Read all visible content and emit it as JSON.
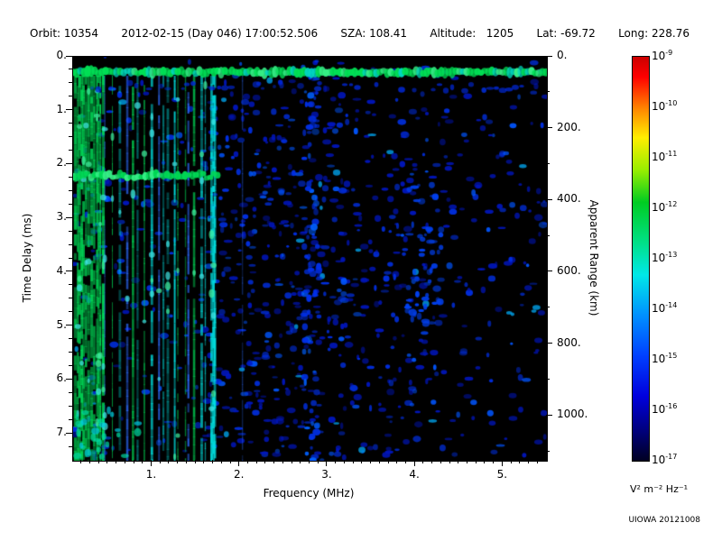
{
  "header": {
    "items": [
      "Orbit: 10354",
      "2012-02-15 (Day 046) 17:00:52.506",
      "SZA: 108.41",
      "Altitude:   1205",
      "Lat: -69.72",
      "Long: 228.76"
    ]
  },
  "footer": {
    "credit": "UIOWA 20121008"
  },
  "chart_data": {
    "type": "heatmap",
    "subtype": "radar-ionogram-spectrogram",
    "title": "",
    "xlabel": "Frequency (MHz)",
    "ylabel": "Time Delay (ms)",
    "y2label": "Apparent Range (km)",
    "xlim": [
      0.1,
      5.5
    ],
    "ylim": [
      0,
      7.5
    ],
    "y2lim": [
      0,
      1125
    ],
    "x_tick_values": [
      1,
      2,
      3,
      4,
      5
    ],
    "x_tick_labels": [
      "1.",
      "2.",
      "3.",
      "4.",
      "5."
    ],
    "y_tick_values": [
      0,
      1,
      2,
      3,
      4,
      5,
      6,
      7
    ],
    "y_tick_labels": [
      "0.",
      "1.",
      "2.",
      "3.",
      "4.",
      "5.",
      "6.",
      "7."
    ],
    "y2_tick_values": [
      0,
      200,
      400,
      600,
      800,
      1000
    ],
    "y2_tick_labels": [
      "0.",
      "200.",
      "400.",
      "600.",
      "800.",
      "1000."
    ],
    "grid": false,
    "plot_background": "#000000",
    "colorbar": {
      "scale": "log",
      "unit": "V² m⁻² Hz⁻¹",
      "scale_exponents": [
        -9,
        -10,
        -11,
        -12,
        -13,
        -14,
        -15,
        -16,
        -17
      ],
      "gradient": [
        {
          "pos": 0,
          "color": "#cc0000"
        },
        {
          "pos": 5,
          "color": "#ff0000"
        },
        {
          "pos": 13,
          "color": "#ff8800"
        },
        {
          "pos": 20,
          "color": "#ffee00"
        },
        {
          "pos": 28,
          "color": "#99ee00"
        },
        {
          "pos": 36,
          "color": "#00cc22"
        },
        {
          "pos": 46,
          "color": "#00e087"
        },
        {
          "pos": 54,
          "color": "#00e8e8"
        },
        {
          "pos": 64,
          "color": "#0090ff"
        },
        {
          "pos": 74,
          "color": "#0040ff"
        },
        {
          "pos": 84,
          "color": "#0000dd"
        },
        {
          "pos": 93,
          "color": "#000077"
        },
        {
          "pos": 100,
          "color": "#000022"
        }
      ]
    },
    "features": {
      "surface_echo_band": {
        "description": "Bright green/cyan horizontal echo band across all frequencies",
        "time_delay_ms": 0.3,
        "frequency_range_mhz": [
          0.1,
          5.5
        ]
      },
      "ionospheric_echo_lines": {
        "description": "Dense bright vertical echo striations (green/cyan)",
        "frequency_range_mhz": [
          0.1,
          1.75
        ],
        "time_delay_range_ms": [
          0.3,
          7.5
        ]
      },
      "second_hop_band": {
        "description": "Horizontal green echo band at low frequencies",
        "time_delay_ms": 2.25,
        "frequency_range_mhz": [
          0.1,
          1.7
        ]
      },
      "background_noise": {
        "description": "Scattered faint blue speckle noise, densest between 1.7 and 3.0 MHz",
        "frequency_range_mhz": [
          0.1,
          5.5
        ]
      }
    }
  }
}
